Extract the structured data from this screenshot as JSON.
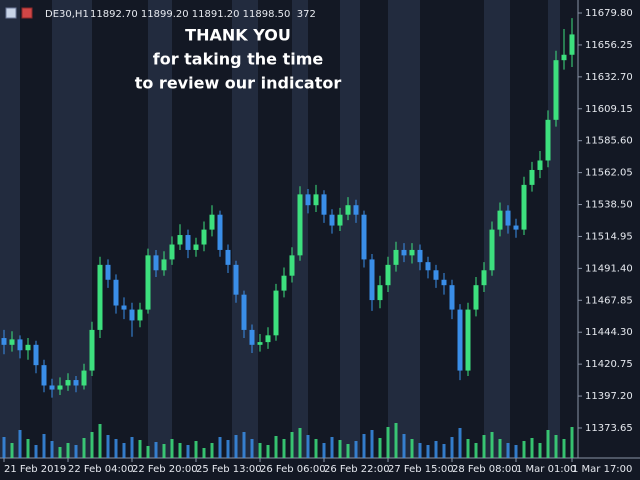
{
  "chart_data": {
    "type": "candlestick",
    "title": "DE30,H1",
    "subtitle": "11892.70 11899.20 11891.20 11898.50  372",
    "annotations": [
      "THANK YOU",
      "for taking the time",
      "to review our indicator"
    ],
    "categories": [
      "21 Feb 2019",
      null,
      null,
      null,
      null,
      null,
      null,
      null,
      "22 Feb 04:00",
      null,
      null,
      null,
      null,
      null,
      null,
      null,
      "22 Feb 20:00",
      null,
      null,
      null,
      null,
      null,
      null,
      null,
      "25 Feb 13:00",
      null,
      null,
      null,
      null,
      null,
      null,
      null,
      "26 Feb 06:00",
      null,
      null,
      null,
      null,
      null,
      null,
      null,
      "26 Feb 22:00",
      null,
      null,
      null,
      null,
      null,
      null,
      null,
      "27 Feb 15:00",
      null,
      null,
      null,
      null,
      null,
      null,
      null,
      "28 Feb 08:00",
      null,
      null,
      null,
      null,
      null,
      null,
      null,
      "1 Mar 01:00",
      null,
      null,
      null,
      null,
      null,
      null,
      "1 Mar 17:00"
    ],
    "open": [
      11440,
      11435,
      11439,
      11431,
      11435,
      11420,
      11405,
      11402,
      11405,
      11409,
      11405,
      11416,
      11446,
      11494,
      11483,
      11464,
      11461,
      11453,
      11461,
      11501,
      11490,
      11498,
      11509,
      11516,
      11505,
      11509,
      11520,
      11531,
      11505,
      11494,
      11472,
      11446,
      11435,
      11437,
      11442,
      11475,
      11486,
      11501,
      11546,
      11538,
      11546,
      11531,
      11523,
      11531,
      11538,
      11531,
      11498,
      11468,
      11479,
      11494,
      11505,
      11501,
      11505,
      11496,
      11490,
      11483,
      11479,
      11461,
      11416,
      11461,
      11479,
      11490,
      11520,
      11534,
      11523,
      11520,
      11553,
      11564,
      11571,
      11601,
      11645,
      11649
    ],
    "high": [
      11446,
      11445,
      11442,
      11440,
      11438,
      11424,
      11410,
      11411,
      11414,
      11412,
      11421,
      11452,
      11500,
      11498,
      11487,
      11470,
      11466,
      11466,
      11506,
      11505,
      11504,
      11515,
      11524,
      11520,
      11514,
      11526,
      11538,
      11534,
      11509,
      11497,
      11475,
      11450,
      11443,
      11448,
      11480,
      11492,
      11507,
      11552,
      11550,
      11553,
      11549,
      11535,
      11536,
      11544,
      11542,
      11534,
      11502,
      11486,
      11500,
      11511,
      11510,
      11510,
      11509,
      11500,
      11494,
      11488,
      11483,
      11465,
      11466,
      11485,
      11496,
      11526,
      11540,
      11538,
      11528,
      11559,
      11570,
      11578,
      11608,
      11652,
      11668,
      11676
    ],
    "low": [
      11428,
      11430,
      11425,
      11424,
      11414,
      11400,
      11396,
      11398,
      11401,
      11400,
      11402,
      11412,
      11440,
      11477,
      11458,
      11454,
      11441,
      11448,
      11458,
      11485,
      11486,
      11494,
      11505,
      11499,
      11500,
      11504,
      11515,
      11500,
      11488,
      11466,
      11440,
      11429,
      11430,
      11432,
      11438,
      11470,
      11481,
      11497,
      11532,
      11533,
      11525,
      11517,
      11519,
      11527,
      11525,
      11492,
      11460,
      11462,
      11474,
      11489,
      11496,
      11495,
      11490,
      11484,
      11477,
      11472,
      11454,
      11409,
      11412,
      11456,
      11474,
      11486,
      11515,
      11517,
      11514,
      11516,
      11548,
      11558,
      11566,
      11596,
      11638,
      11640
    ],
    "close": [
      11435,
      11439,
      11431,
      11435,
      11420,
      11405,
      11402,
      11405,
      11409,
      11405,
      11416,
      11446,
      11494,
      11483,
      11464,
      11461,
      11453,
      11461,
      11501,
      11490,
      11498,
      11509,
      11516,
      11505,
      11509,
      11520,
      11531,
      11505,
      11494,
      11472,
      11446,
      11435,
      11437,
      11442,
      11475,
      11486,
      11501,
      11546,
      11538,
      11546,
      11531,
      11523,
      11531,
      11538,
      11531,
      11498,
      11468,
      11479,
      11494,
      11505,
      11501,
      11505,
      11496,
      11490,
      11483,
      11479,
      11461,
      11416,
      11461,
      11479,
      11490,
      11520,
      11534,
      11523,
      11520,
      11553,
      11564,
      11571,
      11601,
      11645,
      11649,
      11664
    ],
    "volume": [
      420,
      300,
      560,
      380,
      260,
      480,
      340,
      220,
      300,
      260,
      400,
      520,
      680,
      460,
      380,
      300,
      420,
      360,
      240,
      320,
      280,
      380,
      300,
      260,
      340,
      200,
      300,
      420,
      360,
      460,
      520,
      380,
      300,
      260,
      440,
      380,
      520,
      600,
      460,
      380,
      300,
      420,
      360,
      280,
      340,
      480,
      560,
      400,
      620,
      700,
      480,
      380,
      300,
      260,
      340,
      280,
      420,
      600,
      380,
      300,
      460,
      520,
      380,
      300,
      260,
      340,
      400,
      300,
      560,
      460,
      380,
      620
    ],
    "bull_color": "#3de07e",
    "bear_color": "#3a8ee8",
    "ylim": [
      11351.5,
      11689.4
    ],
    "yticks": [
      {
        "value": 11679.8,
        "label": "11679.80"
      },
      11656.25,
      {
        "value": 11632.7,
        "label": "11632.70"
      },
      11609.15,
      {
        "value": 11585.6,
        "label": "11585.60"
      },
      11562.05,
      {
        "value": 11538.5,
        "label": "11538.50"
      },
      11514.95,
      {
        "value": 11491.4,
        "label": "11491.40"
      },
      11467.85,
      {
        "value": 11444.3,
        "label": "11444.30"
      },
      11420.75,
      {
        "value": 11397.2,
        "label": "11397.20"
      },
      11373.65
    ],
    "grid": false
  }
}
